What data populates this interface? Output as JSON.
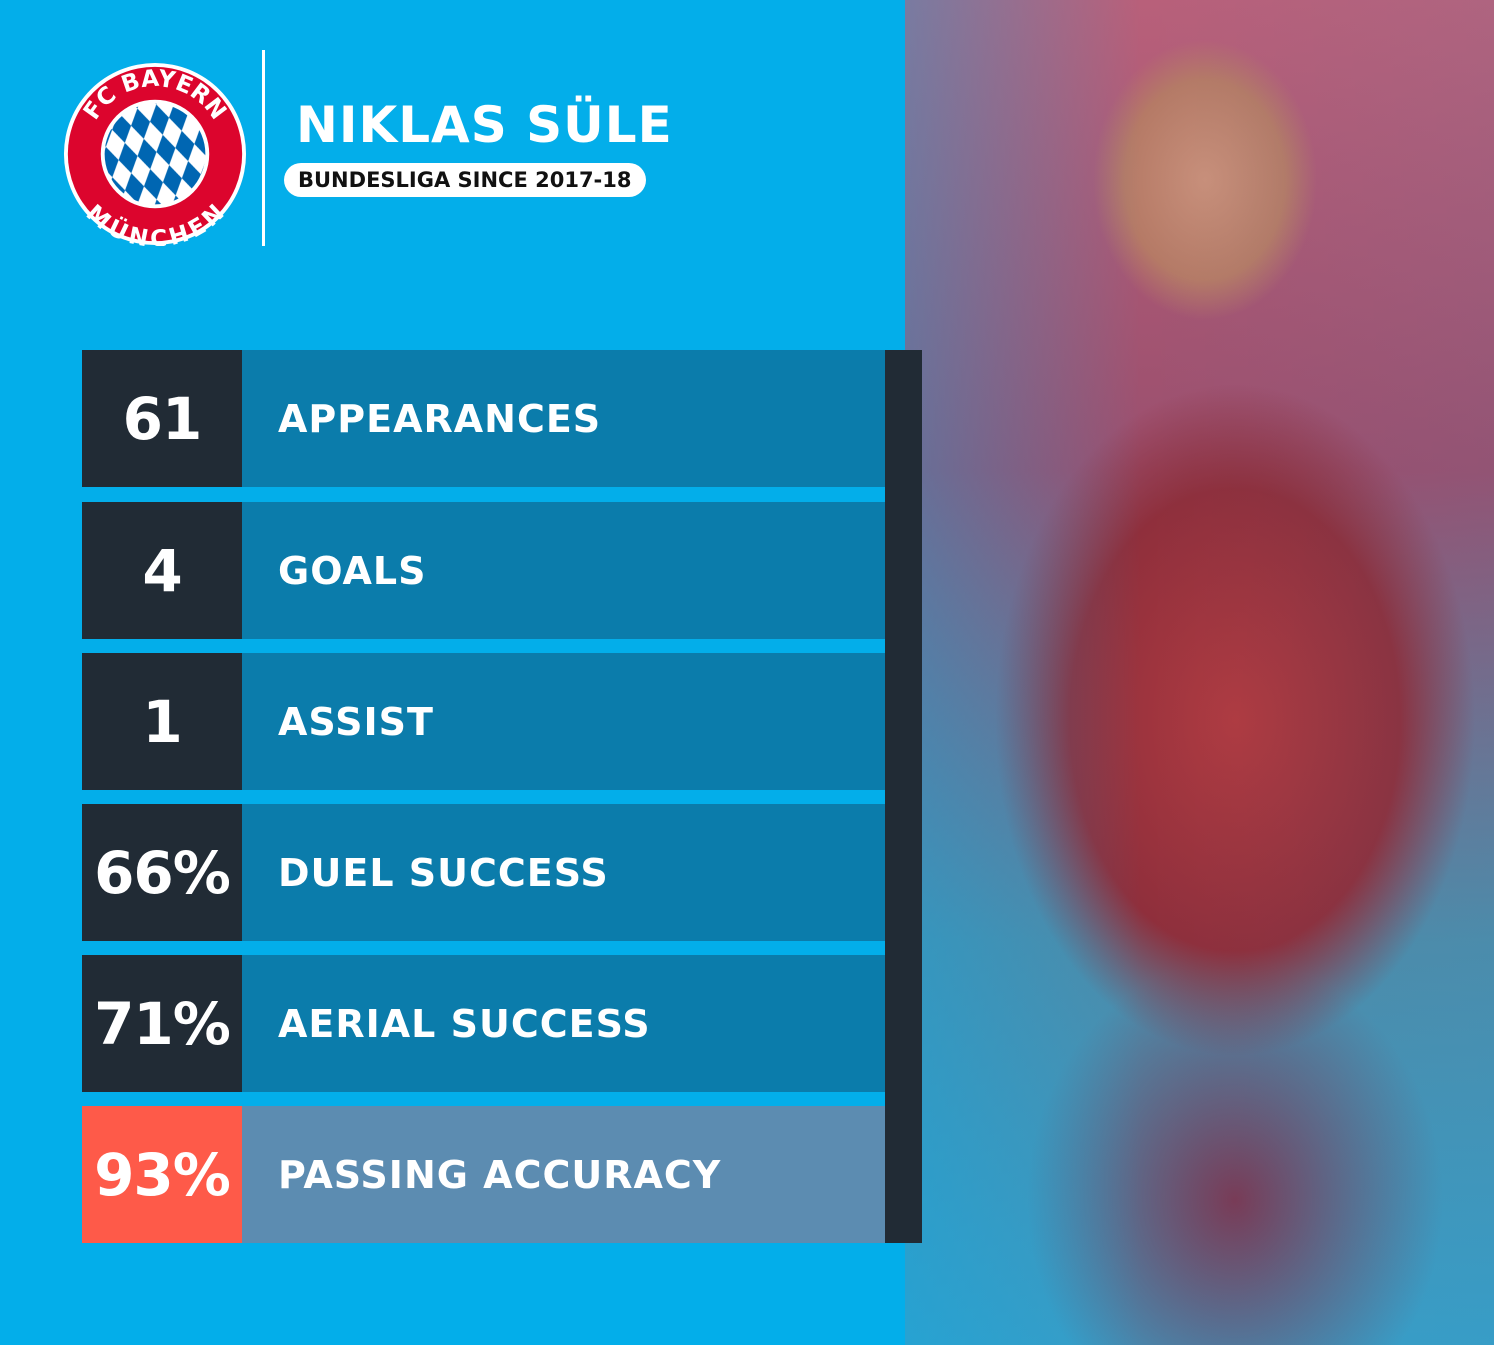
{
  "header": {
    "club_logo_text": [
      "FC BAYERN",
      "MÜNCHEN"
    ],
    "player_name": "NIKLAS SÜLE",
    "subtitle": "BUNDESLIGA SINCE 2017-18"
  },
  "stats": [
    {
      "value": "61",
      "label": "APPEARANCES"
    },
    {
      "value": "4",
      "label": "GOALS"
    },
    {
      "value": "1",
      "label": "ASSIST"
    },
    {
      "value": "66%",
      "label": "DUEL SUCCESS"
    },
    {
      "value": "71%",
      "label": "AERIAL SUCCESS"
    },
    {
      "value": "93%",
      "label": "PASSING ACCURACY",
      "highlight": true
    }
  ],
  "colors": {
    "background": "#03aeea",
    "stat_number_bg": "#212b35",
    "stat_label_bg": "#0b7cab",
    "highlight_number_bg": "#fe5a49",
    "highlight_label_bg": "#5c8cb1",
    "crest_red": "#dc052d",
    "crest_blue": "#0066b2"
  }
}
